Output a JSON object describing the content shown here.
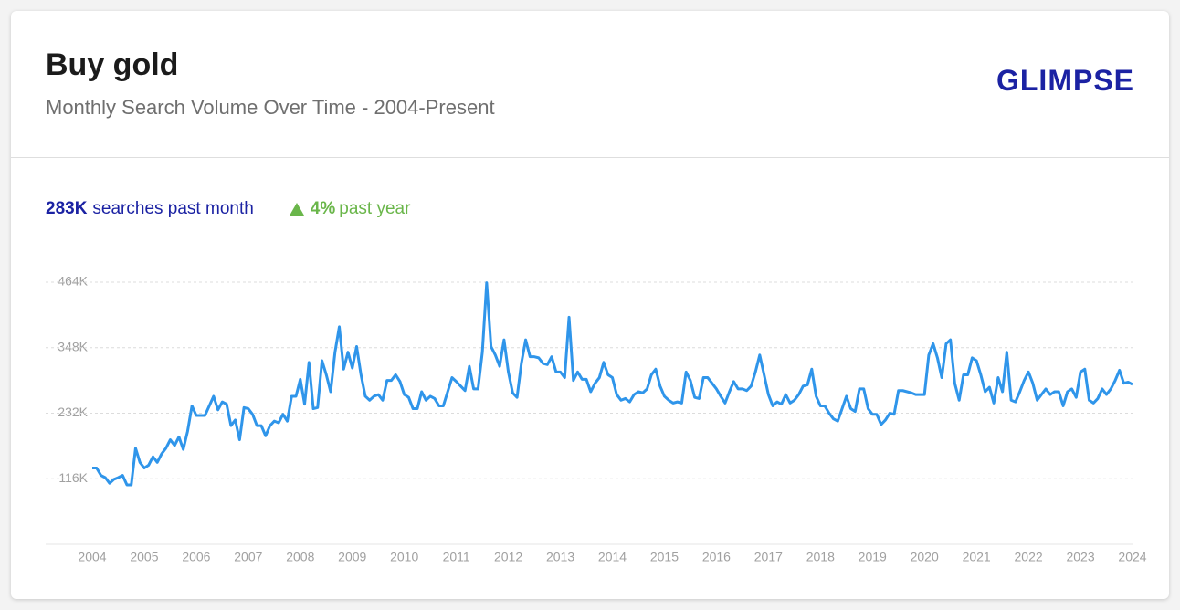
{
  "chart_data": {
    "type": "line",
    "title": "Buy gold",
    "subtitle": "Monthly Search Volume Over Time - 2004-Present",
    "brand": "GLIMPSE",
    "stats": {
      "current": "283K",
      "current_label": "searches past month",
      "change": "4%",
      "change_label": "past year"
    },
    "x": [
      2004,
      2004.083,
      2004.167,
      2004.25,
      2004.333,
      2004.417,
      2004.5,
      2004.583,
      2004.667,
      2004.75,
      2004.833,
      2004.917,
      2005,
      2005.083,
      2005.167,
      2005.25,
      2005.333,
      2005.417,
      2005.5,
      2005.583,
      2005.667,
      2005.75,
      2005.833,
      2005.917,
      2006,
      2006.083,
      2006.167,
      2006.25,
      2006.333,
      2006.417,
      2006.5,
      2006.583,
      2006.667,
      2006.75,
      2006.833,
      2006.917,
      2007,
      2007.083,
      2007.167,
      2007.25,
      2007.333,
      2007.417,
      2007.5,
      2007.583,
      2007.667,
      2007.75,
      2007.833,
      2007.917,
      2008,
      2008.083,
      2008.167,
      2008.25,
      2008.333,
      2008.417,
      2008.5,
      2008.583,
      2008.667,
      2008.75,
      2008.833,
      2008.917,
      2009,
      2009.083,
      2009.167,
      2009.25,
      2009.333,
      2009.417,
      2009.5,
      2009.583,
      2009.667,
      2009.75,
      2009.833,
      2009.917,
      2010,
      2010.083,
      2010.167,
      2010.25,
      2010.333,
      2010.417,
      2010.5,
      2010.583,
      2010.667,
      2010.75,
      2010.833,
      2010.917,
      2011,
      2011.083,
      2011.167,
      2011.25,
      2011.333,
      2011.417,
      2011.5,
      2011.583,
      2011.667,
      2011.75,
      2011.833,
      2011.917,
      2012,
      2012.083,
      2012.167,
      2012.25,
      2012.333,
      2012.417,
      2012.5,
      2012.583,
      2012.667,
      2012.75,
      2012.833,
      2012.917,
      2013,
      2013.083,
      2013.167,
      2013.25,
      2013.333,
      2013.417,
      2013.5,
      2013.583,
      2013.667,
      2013.75,
      2013.833,
      2013.917,
      2014,
      2014.083,
      2014.167,
      2014.25,
      2014.333,
      2014.417,
      2014.5,
      2014.583,
      2014.667,
      2014.75,
      2014.833,
      2014.917,
      2015,
      2015.083,
      2015.167,
      2015.25,
      2015.333,
      2015.417,
      2015.5,
      2015.583,
      2015.667,
      2015.75,
      2015.833,
      2015.917,
      2016,
      2016.083,
      2016.167,
      2016.25,
      2016.333,
      2016.417,
      2016.5,
      2016.583,
      2016.667,
      2016.75,
      2016.833,
      2016.917,
      2017,
      2017.083,
      2017.167,
      2017.25,
      2017.333,
      2017.417,
      2017.5,
      2017.583,
      2017.667,
      2017.75,
      2017.833,
      2017.917,
      2018,
      2018.083,
      2018.167,
      2018.25,
      2018.333,
      2018.417,
      2018.5,
      2018.583,
      2018.667,
      2018.75,
      2018.833,
      2018.917,
      2019,
      2019.083,
      2019.167,
      2019.25,
      2019.333,
      2019.417,
      2019.5,
      2019.583,
      2019.667,
      2019.75,
      2019.833,
      2019.917,
      2020,
      2020.083,
      2020.167,
      2020.25,
      2020.333,
      2020.417,
      2020.5,
      2020.583,
      2020.667,
      2020.75,
      2020.833,
      2020.917,
      2021,
      2021.083,
      2021.167,
      2021.25,
      2021.333,
      2021.417,
      2021.5,
      2021.583,
      2021.667,
      2021.75,
      2021.833,
      2021.917,
      2022,
      2022.083,
      2022.167,
      2022.25,
      2022.333,
      2022.417,
      2022.5,
      2022.583,
      2022.667,
      2022.75,
      2022.833,
      2022.917,
      2023,
      2023.083,
      2023.167,
      2023.25,
      2023.333,
      2023.417,
      2023.5,
      2023.583,
      2023.667,
      2023.75,
      2023.833,
      2023.917,
      2024
    ],
    "series": [
      {
        "color": "#2f95ea",
        "values": [
          135,
          135,
          122,
          118,
          108,
          115,
          118,
          122,
          105,
          105,
          170,
          145,
          135,
          140,
          155,
          145,
          160,
          170,
          185,
          175,
          190,
          168,
          200,
          245,
          228,
          228,
          228,
          245,
          262,
          238,
          252,
          248,
          210,
          220,
          185,
          242,
          240,
          230,
          210,
          210,
          192,
          210,
          218,
          215,
          230,
          218,
          262,
          262,
          292,
          248,
          322,
          240,
          242,
          325,
          300,
          270,
          340,
          385,
          310,
          340,
          312,
          350,
          300,
          262,
          255,
          262,
          265,
          255,
          290,
          290,
          300,
          288,
          265,
          260,
          240,
          240,
          270,
          255,
          262,
          258,
          245,
          245,
          270,
          295,
          288,
          280,
          272,
          315,
          275,
          275,
          340,
          463,
          350,
          335,
          315,
          362,
          305,
          268,
          260,
          320,
          362,
          332,
          332,
          330,
          320,
          318,
          332,
          305,
          305,
          295,
          402,
          290,
          305,
          292,
          292,
          270,
          285,
          295,
          322,
          300,
          295,
          265,
          255,
          258,
          252,
          265,
          270,
          268,
          275,
          300,
          310,
          280,
          262,
          255,
          250,
          252,
          250,
          305,
          290,
          260,
          258,
          295,
          295,
          285,
          275,
          262,
          250,
          270,
          288,
          275,
          275,
          272,
          280,
          305,
          335,
          300,
          265,
          245,
          252,
          248,
          265,
          250,
          255,
          265,
          280,
          282,
          310,
          262,
          245,
          245,
          232,
          222,
          218,
          240,
          262,
          240,
          235,
          275,
          275,
          240,
          230,
          230,
          212,
          220,
          232,
          230,
          272,
          272,
          270,
          268,
          265,
          265,
          265,
          335,
          355,
          330,
          295,
          355,
          362,
          285,
          255,
          300,
          300,
          330,
          325,
          300,
          270,
          278,
          250,
          295,
          270,
          340,
          255,
          252,
          270,
          290,
          305,
          285,
          255,
          265,
          275,
          265,
          270,
          270,
          245,
          270,
          275,
          260,
          305,
          310,
          255,
          250,
          258,
          275,
          265,
          275,
          290,
          308,
          285,
          287,
          283
        ]
      }
    ],
    "xlim": [
      2004,
      2024
    ],
    "xticks": [
      2004,
      2005,
      2006,
      2007,
      2008,
      2009,
      2010,
      2011,
      2012,
      2013,
      2014,
      2015,
      2016,
      2017,
      2018,
      2019,
      2020,
      2021,
      2022,
      2023,
      2024
    ],
    "ylim": [
      0,
      464
    ],
    "yticks": [
      {
        "value": 116,
        "label": "116K"
      },
      {
        "value": 232,
        "label": "232K"
      },
      {
        "value": 348,
        "label": "348K"
      },
      {
        "value": 464,
        "label": "464K"
      }
    ],
    "grid": true
  }
}
